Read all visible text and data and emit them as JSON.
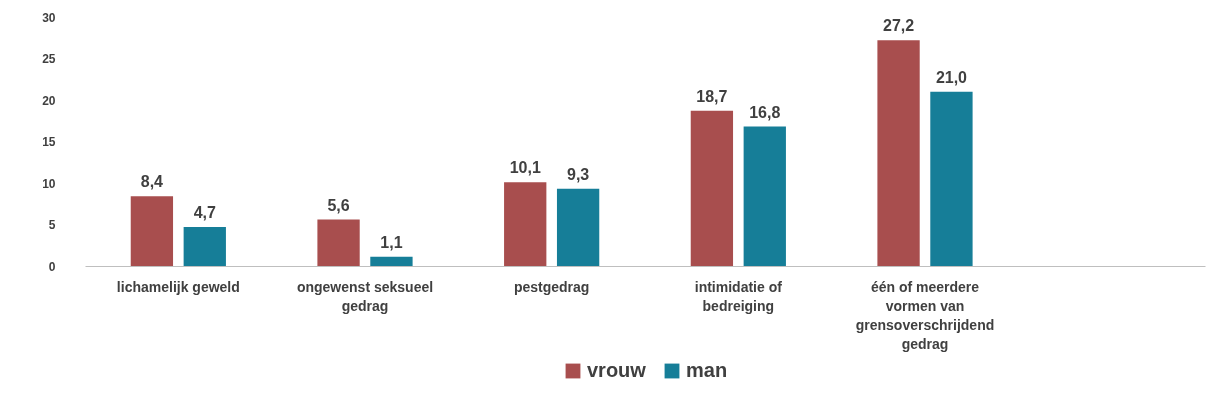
{
  "chart_data": {
    "type": "bar",
    "categories": [
      "lichamelijk geweld",
      "ongewenst seksueel gedrag",
      "pestgedrag",
      "intimidatie of bedreiging",
      "één of meerdere vormen van grensoverschrijdend gedrag",
      null
    ],
    "series": [
      {
        "name": "vrouw",
        "color": "#a84e4e",
        "values": [
          8.4,
          5.6,
          10.1,
          18.7,
          27.2,
          null
        ],
        "value_labels": [
          "8,4",
          "5,6",
          "10,1",
          "18,7",
          "27,2",
          null
        ]
      },
      {
        "name": "man",
        "color": "#167e98",
        "values": [
          4.7,
          1.1,
          9.3,
          16.8,
          21.0,
          null
        ],
        "value_labels": [
          "4,7",
          "1,1",
          "9,3",
          "16,8",
          "21,0",
          null
        ]
      }
    ],
    "ylim": [
      0,
      30
    ],
    "yticks": [
      0,
      5,
      10,
      15,
      20,
      25,
      30
    ],
    "grid": false,
    "legend": "bottom"
  }
}
